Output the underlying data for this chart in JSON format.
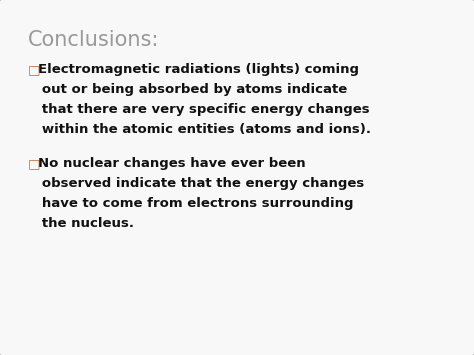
{
  "title": "Conclusions:",
  "title_color": "#999999",
  "title_fontsize": 15,
  "bullet_char": "□",
  "bullet_color": "#c0703a",
  "body_color": "#111111",
  "body_fontsize": 9.5,
  "background_color": "#f8f8f8",
  "border_color": "#bbbbbb",
  "bullet1_lines": [
    "□Electromagnetic radiations (lights) coming",
    "   out or being absorbed by atoms indicate",
    "   that there are very specific energy changes",
    "   within the atomic entities (atoms and ions)."
  ],
  "bullet2_lines": [
    "□No nuclear changes have ever been",
    "   observed indicate that the energy changes",
    "   have to come from electrons surrounding",
    "   the nucleus."
  ]
}
